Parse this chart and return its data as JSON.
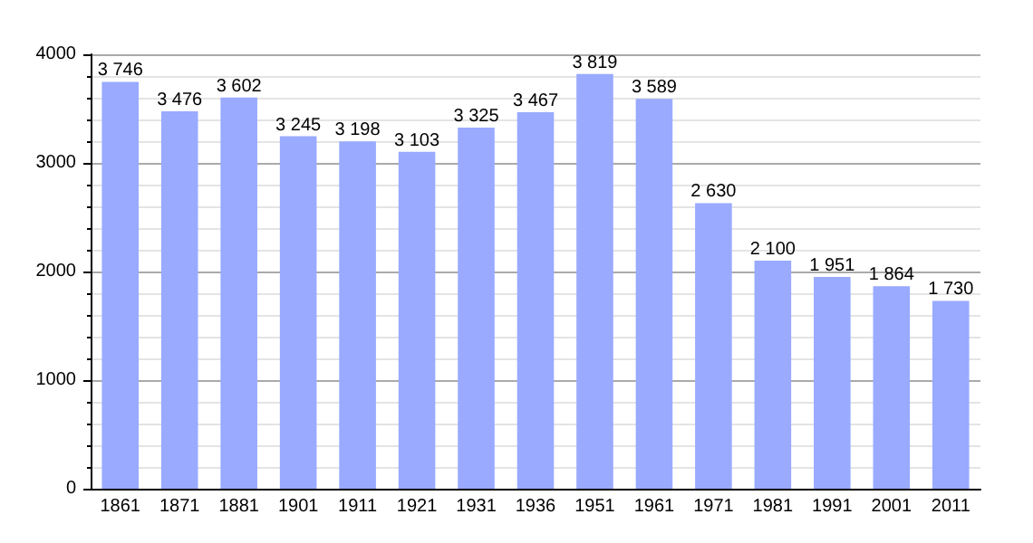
{
  "chart_data": {
    "type": "bar",
    "categories": [
      "1861",
      "1871",
      "1881",
      "1901",
      "1911",
      "1921",
      "1931",
      "1936",
      "1951",
      "1961",
      "1971",
      "1981",
      "1991",
      "2001",
      "2011"
    ],
    "values": [
      3746,
      3476,
      3602,
      3245,
      3198,
      3103,
      3325,
      3467,
      3819,
      3589,
      2630,
      2100,
      1951,
      1864,
      1730
    ],
    "value_labels": [
      "3 746",
      "3 476",
      "3 602",
      "3 245",
      "3 198",
      "3 103",
      "3 325",
      "3 467",
      "3 819",
      "3 589",
      "2 630",
      "2 100",
      "1 951",
      "1 864",
      "1 730"
    ],
    "color": "#99aaff",
    "ylim": [
      0,
      4000
    ],
    "yticks": [
      0,
      1000,
      2000,
      3000,
      4000
    ],
    "grid": "y"
  }
}
